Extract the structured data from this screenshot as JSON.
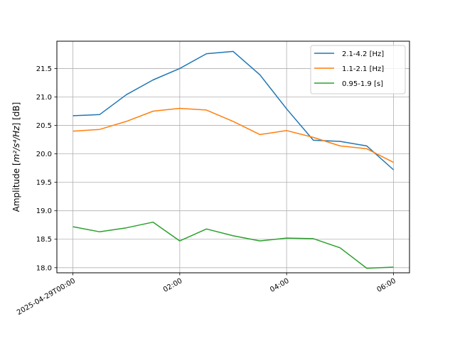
{
  "chart_data": {
    "type": "line",
    "x": [
      "2025-04-29T00:00",
      "2025-04-29T00:30",
      "2025-04-29T01:00",
      "2025-04-29T01:30",
      "2025-04-29T02:00",
      "2025-04-29T02:30",
      "2025-04-29T03:00",
      "2025-04-29T03:30",
      "2025-04-29T04:00",
      "2025-04-29T04:30",
      "2025-04-29T05:00",
      "2025-04-29T05:30",
      "2025-04-29T06:00"
    ],
    "series": [
      {
        "name": "2.1-4.2 [Hz]",
        "color": "#1f77b4",
        "values": [
          20.67,
          20.69,
          21.04,
          21.3,
          21.5,
          21.76,
          21.8,
          21.39,
          20.79,
          20.24,
          20.22,
          20.14,
          19.72
        ]
      },
      {
        "name": "1.1-2.1 [Hz]",
        "color": "#ff7f0e",
        "values": [
          20.4,
          20.43,
          20.57,
          20.75,
          20.8,
          20.77,
          20.57,
          20.34,
          20.41,
          20.29,
          20.14,
          20.09,
          19.85
        ]
      },
      {
        "name": "0.95-1.9 [s]",
        "color": "#2ca02c",
        "values": [
          18.72,
          18.63,
          18.7,
          18.8,
          18.47,
          18.68,
          18.56,
          18.47,
          18.52,
          18.51,
          18.35,
          17.99,
          18.01
        ]
      }
    ],
    "x_ticks": [
      "2025-04-29T00:00",
      "02:00",
      "04:00",
      "06:00"
    ],
    "y_ticks": [
      "18.0",
      "18.5",
      "19.0",
      "19.5",
      "20.0",
      "20.5",
      "21.0",
      "21.5"
    ],
    "y_tick_values": [
      18.0,
      18.5,
      19.0,
      19.5,
      20.0,
      20.5,
      21.0,
      21.5
    ],
    "ylabel_main": "Amplitude [",
    "ylabel_math": "m²/s⁴/Hz",
    "ylabel_unit": "] [dB]",
    "ylim": [
      17.91,
      21.98
    ],
    "grid": true,
    "legend_position": "top-right"
  }
}
